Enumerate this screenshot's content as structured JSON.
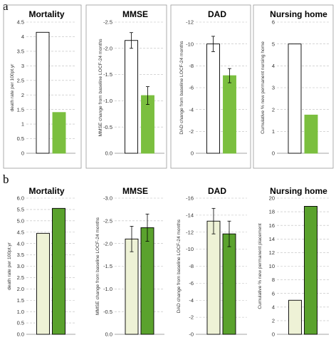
{
  "panels": [
    {
      "label": "a"
    },
    {
      "label": "b"
    }
  ],
  "colors": {
    "open_bar": "#ffffff",
    "open_bar_b": "#eef2d6",
    "green_bar": "#7bbf3f",
    "green_bar_b": "#5aa22d",
    "grid": "#bdbdbd",
    "border": "#9a9a9a"
  },
  "chart_data": [
    {
      "type": "bar",
      "panel": "a",
      "title": "Mortality",
      "ylabel": "death rate per 100pt.yr",
      "ylim": [
        0,
        4.5
      ],
      "ticks": [
        0,
        0.5,
        1,
        1.5,
        2,
        2.5,
        3,
        3.5,
        4,
        4.5
      ],
      "tick_labels": [
        "0",
        "0.5",
        "1",
        "1.5",
        "2",
        "2.5",
        "3",
        "3.5",
        "4",
        "4.5"
      ],
      "inverted": false,
      "grid": true,
      "values": [
        4.15,
        1.4
      ],
      "error": null
    },
    {
      "type": "bar",
      "panel": "a",
      "title": "MMSE",
      "ylabel": "MMSE change from baseline LOCF-24 months",
      "ylim": [
        0,
        -2.5
      ],
      "ticks": [
        0,
        -0.5,
        -1,
        -1.5,
        -2,
        -2.5
      ],
      "tick_labels": [
        "0.0",
        "-0.5",
        "-1.0",
        "-1.5",
        "-2.0",
        "-2.5"
      ],
      "inverted": true,
      "grid": true,
      "values": [
        -2.15,
        -1.1
      ],
      "error": [
        0.15,
        0.17
      ]
    },
    {
      "type": "bar",
      "panel": "a",
      "title": "DAD",
      "ylabel": "DAD change from baseline LOCF-24 months",
      "ylim": [
        0,
        -12
      ],
      "ticks": [
        0,
        -2,
        -4,
        -6,
        -8,
        -10,
        -12
      ],
      "tick_labels": [
        "0",
        "-2",
        "-4",
        "-6",
        "-8",
        "-10",
        "-12"
      ],
      "inverted": true,
      "grid": true,
      "values": [
        -10.0,
        -7.1
      ],
      "error": [
        0.7,
        0.65
      ]
    },
    {
      "type": "bar",
      "panel": "a",
      "title": "Nursing home",
      "ylabel": "Cumulative % new permanent nursing home",
      "ylim": [
        0,
        6
      ],
      "ticks": [
        0,
        1,
        2,
        3,
        4,
        5,
        6
      ],
      "tick_labels": [
        "0",
        "1",
        "2",
        "3",
        "4",
        "5",
        "6"
      ],
      "inverted": false,
      "grid": true,
      "values": [
        5.0,
        1.75
      ],
      "error": null
    },
    {
      "type": "bar",
      "panel": "b",
      "title": "Mortality",
      "ylabel": "death rate per 100pt.yr",
      "ylim": [
        0,
        6
      ],
      "ticks": [
        0,
        0.5,
        1,
        1.5,
        2,
        2.5,
        3,
        3.5,
        4,
        4.5,
        5,
        5.5,
        6
      ],
      "tick_labels": [
        "0.0",
        "0.5",
        "1.0",
        "1.5",
        "2.0",
        "2.5",
        "3.0",
        "3.5",
        "4.0",
        "4.5",
        "5.0",
        "5.5",
        "6.0"
      ],
      "inverted": false,
      "grid": true,
      "values": [
        4.45,
        5.55
      ],
      "error": null
    },
    {
      "type": "bar",
      "panel": "b",
      "title": "MMSE",
      "ylabel": "MMSE change from baseline LOCF-24 months",
      "ylim": [
        0,
        -3
      ],
      "ticks": [
        0,
        -0.5,
        -1,
        -1.5,
        -2,
        -2.5,
        -3
      ],
      "tick_labels": [
        "0.0",
        "-0.5",
        "-1.0",
        "-1.5",
        "-2.0",
        "-2.5",
        "-3.0"
      ],
      "inverted": true,
      "grid": true,
      "values": [
        -2.1,
        -2.35
      ],
      "error": [
        0.28,
        0.3
      ]
    },
    {
      "type": "bar",
      "panel": "b",
      "title": "DAD",
      "ylabel": "DAD change from baseline LOCF-24 months",
      "ylim": [
        0,
        -16
      ],
      "ticks": [
        0,
        -2,
        -4,
        -6,
        -8,
        -10,
        -12,
        -14,
        -16
      ],
      "tick_labels": [
        "-0",
        "-2",
        "-4",
        "-6",
        "-8",
        "-10",
        "-12",
        "-14",
        "-16"
      ],
      "inverted": true,
      "grid": true,
      "values": [
        -13.3,
        -11.8
      ],
      "error": [
        1.5,
        1.5
      ]
    },
    {
      "type": "bar",
      "panel": "b",
      "title": "Nursing home",
      "ylabel": "Cumulative % new permanent placement",
      "ylim": [
        0,
        20
      ],
      "ticks": [
        0,
        2,
        4,
        6,
        8,
        10,
        12,
        14,
        16,
        18,
        20
      ],
      "tick_labels": [
        "0",
        "2",
        "4",
        "6",
        "8",
        "10",
        "12",
        "14",
        "16",
        "18",
        "20"
      ],
      "inverted": false,
      "grid": true,
      "values": [
        5.0,
        18.8
      ],
      "error": null
    }
  ]
}
